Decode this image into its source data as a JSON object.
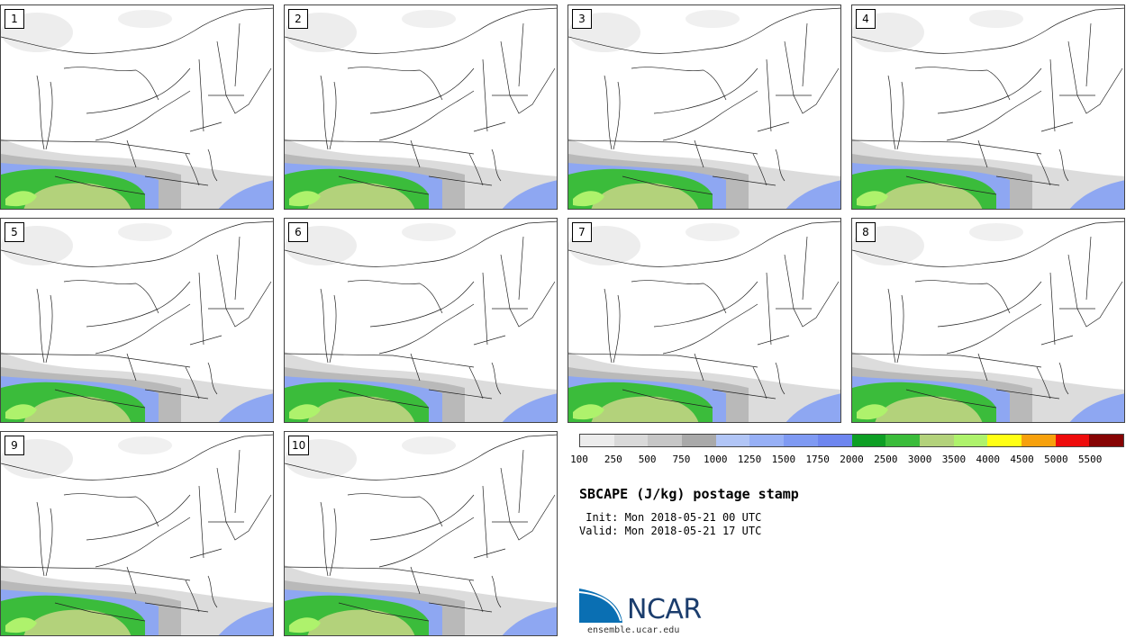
{
  "panels": [
    {
      "label": "1"
    },
    {
      "label": "2"
    },
    {
      "label": "3"
    },
    {
      "label": "4"
    },
    {
      "label": "5"
    },
    {
      "label": "6"
    },
    {
      "label": "7"
    },
    {
      "label": "8"
    },
    {
      "label": "9"
    },
    {
      "label": "10"
    }
  ],
  "colorbar": {
    "colors": [
      "#ececec",
      "#d9d9d9",
      "#c6c6c6",
      "#a9a9a9",
      "#b1c5f6",
      "#97b0f6",
      "#7f9af3",
      "#6e86ef",
      "#0e9f25",
      "#3bbc3b",
      "#b3d27b",
      "#aef26c",
      "#ffff14",
      "#f7a10d",
      "#ee0c0c",
      "#860303"
    ],
    "tick_labels": [
      "100",
      "250",
      "500",
      "750",
      "1000",
      "1250",
      "1500",
      "1750",
      "2000",
      "2500",
      "3000",
      "3500",
      "4000",
      "4500",
      "5000",
      "5500"
    ]
  },
  "title": "SBCAPE (J/kg) postage stamp",
  "init_text": " Init: Mon 2018-05-21 00 UTC",
  "valid_text": "Valid: Mon 2018-05-21 17 UTC",
  "logo": {
    "text": "NCAR",
    "colors": [
      "#0a6fb3",
      "#1b3d6d"
    ]
  },
  "site_text": "ensemble.ucar.edu"
}
